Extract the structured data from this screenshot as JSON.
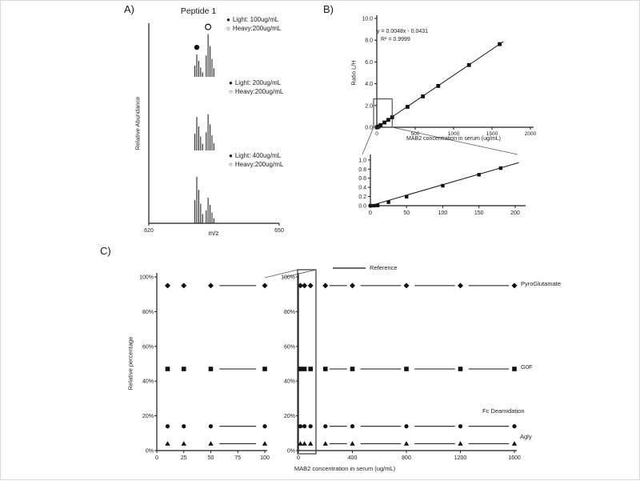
{
  "chart_data": [
    {
      "id": "A",
      "type": "line",
      "label": "A)",
      "title": "Peptide 1",
      "ylabel": "Relative Abundance",
      "xlabel": "m/z",
      "xlim": [
        620,
        650
      ],
      "x_ticks": [
        [
          620,
          "620"
        ],
        [
          650,
          "650"
        ]
      ],
      "marker_light": "●",
      "marker_heavy": "○",
      "light_mz": 630.6,
      "heavy_mz": 633.2,
      "isotope_pattern": [
        0.5,
        1.0,
        0.72,
        0.42,
        0.2
      ],
      "spectra": [
        {
          "legend_light": "Light: 100ug/mL",
          "legend_heavy": "Heavy:200ug/mL",
          "light_rel": 0.48,
          "heavy_rel": 0.92
        },
        {
          "legend_light": "Light: 200ug/mL",
          "legend_heavy": "Heavy:200ug/mL",
          "light_rel": 0.72,
          "heavy_rel": 0.78
        },
        {
          "legend_light": "Light: 400ug/mL",
          "legend_heavy": "Heavy:200ug/mL",
          "light_rel": 1.0,
          "heavy_rel": 0.55
        }
      ]
    },
    {
      "id": "B",
      "type": "scatter",
      "label": "B)",
      "equation": "y = 0.0048x - 0.0431",
      "r_squared": "R² = 0.9999",
      "ylabel": "Ratio L/H",
      "xlabel": "MAB2 concentration in serum (ug/mL)",
      "fit": {
        "slope": 0.0048,
        "intercept": -0.0431
      },
      "main": {
        "xlim": [
          0,
          2000
        ],
        "ylim": [
          0,
          10
        ],
        "x_ticks": [
          [
            0,
            "0"
          ],
          [
            500,
            "500"
          ],
          [
            1000,
            "1000"
          ],
          [
            1500,
            "1500"
          ],
          [
            2000,
            "2000"
          ]
        ],
        "y_ticks": [
          [
            0,
            "0.0"
          ],
          [
            2,
            "2.0"
          ],
          [
            4,
            "4.0"
          ],
          [
            6,
            "6.0"
          ],
          [
            8,
            "8.0"
          ],
          [
            10,
            "10.0"
          ]
        ],
        "points_x": [
          0,
          10,
          25,
          50,
          100,
          150,
          200,
          400,
          600,
          800,
          1200,
          1600
        ],
        "line_x_end": 1650,
        "zoom_region": {
          "x": [
            0,
            200
          ],
          "y": [
            0,
            2.6
          ]
        }
      },
      "inset": {
        "xlim": [
          0,
          210
        ],
        "ylim": [
          0,
          1.05
        ],
        "x_ticks": [
          [
            0,
            "0"
          ],
          [
            50,
            "50"
          ],
          [
            100,
            "100"
          ],
          [
            150,
            "150"
          ],
          [
            200,
            "200"
          ]
        ],
        "y_ticks": [
          [
            0,
            "0.0"
          ],
          [
            0.2,
            "0.2"
          ],
          [
            0.4,
            "0.4"
          ],
          [
            0.6,
            "0.6"
          ],
          [
            0.8,
            "0.8"
          ],
          [
            1.0,
            "1.0"
          ]
        ],
        "points_x": [
          0,
          5,
          10,
          25,
          50,
          100,
          150,
          180
        ],
        "line_x_end": 205
      }
    },
    {
      "id": "C",
      "type": "scatter",
      "label": "C)",
      "ylabel": "Relative percentage",
      "xlabel": "MAB2 concentration in serum (ug/mL)",
      "reference_label": "Reference",
      "y_ticks": [
        [
          0,
          "0%"
        ],
        [
          20,
          "20%"
        ],
        [
          40,
          "40%"
        ],
        [
          60,
          "60%"
        ],
        [
          80,
          "80%"
        ],
        [
          100,
          "100%"
        ]
      ],
      "left": {
        "xlim": [
          0,
          100
        ],
        "x_ticks": [
          [
            0,
            "0"
          ],
          [
            25,
            "25"
          ],
          [
            50,
            "50"
          ],
          [
            75,
            "75"
          ],
          [
            100,
            "100"
          ]
        ],
        "points_x": [
          10,
          25,
          50,
          100
        ],
        "ref_segments": [
          [
            58,
            92
          ]
        ]
      },
      "right": {
        "xlim": [
          0,
          1600
        ],
        "x_ticks": [
          [
            0,
            "0"
          ],
          [
            400,
            "400"
          ],
          [
            800,
            "800"
          ],
          [
            1200,
            "1200"
          ],
          [
            1600,
            "1600"
          ]
        ],
        "points_x": [
          15,
          45,
          90,
          200,
          400,
          800,
          1200,
          1600
        ],
        "ref_segments": [
          [
            230,
            360
          ],
          [
            460,
            760
          ],
          [
            860,
            1160
          ],
          [
            1260,
            1560
          ]
        ]
      },
      "series": [
        {
          "name": "PyroGlutamate",
          "marker": "diamond",
          "value": 95
        },
        {
          "name": "G0F",
          "marker": "square",
          "value": 47
        },
        {
          "name": "Fc Deamidation",
          "marker": "circle",
          "value": 14
        },
        {
          "name": "Agly",
          "marker": "triangle",
          "value": 4
        }
      ]
    }
  ],
  "colors": {
    "ink": "#1a1a1a",
    "data": "#111111",
    "box": "#333333"
  }
}
